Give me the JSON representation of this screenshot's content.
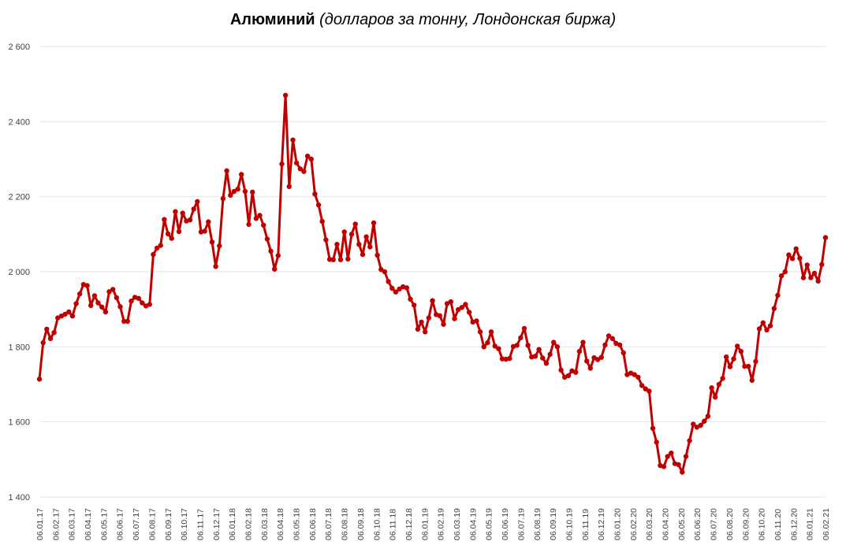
{
  "title": {
    "main": "Алюминий",
    "sub": "(долларов за тонну, Лондонская биржа)"
  },
  "colors": {
    "series": "#c00000",
    "grid": "#e6e6e6",
    "text": "#404040"
  },
  "chart_data": {
    "type": "line",
    "title": "Алюминий (долларов за тонну, Лондонская биржа)",
    "xlabel": "",
    "ylabel": "",
    "ylim": [
      1400,
      2600
    ],
    "yticks": [
      1400,
      1600,
      1800,
      2000,
      2200,
      2400,
      2600
    ],
    "ytick_labels": [
      "1 400",
      "1 600",
      "1 800",
      "2 000",
      "2 200",
      "2 400",
      "2 600"
    ],
    "xtick_labels": [
      "06.01.17",
      "06.02.17",
      "06.03.17",
      "06.04.17",
      "06.05.17",
      "06.06.17",
      "06.07.17",
      "06.08.17",
      "06.09.17",
      "06.10.17",
      "06.11.17",
      "06.12.17",
      "06.01.18",
      "06.02.18",
      "06.03.18",
      "06.04.18",
      "06.05.18",
      "06.06.18",
      "06.07.18",
      "06.08.18",
      "06.09.18",
      "06.10.18",
      "06.11.18",
      "06.12.18",
      "06.01.19",
      "06.02.19",
      "06.03.19",
      "06.04.19",
      "06.05.19",
      "06.06.19",
      "06.07.19",
      "06.08.19",
      "06.09.19",
      "06.10.19",
      "06.11.19",
      "06.12.19",
      "06.01.20",
      "06.02.20",
      "06.03.20",
      "06.04.20",
      "06.05.20",
      "06.06.20",
      "06.07.20",
      "06.08.20",
      "06.09.20",
      "06.10.20",
      "06.11.20",
      "06.12.20",
      "06.01.21",
      "06.02.21"
    ],
    "grid": true,
    "legend": "none",
    "markers": true,
    "series": [
      {
        "values": [
          1714,
          1811,
          1847,
          1822,
          1838,
          1877,
          1882,
          1887,
          1893,
          1882,
          1915,
          1941,
          1966,
          1963,
          1910,
          1936,
          1917,
          1906,
          1893,
          1947,
          1953,
          1931,
          1907,
          1868,
          1868,
          1922,
          1932,
          1929,
          1917,
          1909,
          1913,
          2046,
          2063,
          2070,
          2139,
          2101,
          2089,
          2160,
          2107,
          2156,
          2135,
          2138,
          2167,
          2187,
          2106,
          2108,
          2133,
          2079,
          2014,
          2069,
          2195,
          2269,
          2204,
          2214,
          2220,
          2259,
          2214,
          2126,
          2212,
          2142,
          2150,
          2124,
          2087,
          2055,
          2007,
          2043,
          2287,
          2470,
          2227,
          2351,
          2290,
          2274,
          2267,
          2308,
          2300,
          2207,
          2178,
          2134,
          2085,
          2033,
          2032,
          2073,
          2032,
          2106,
          2034,
          2100,
          2127,
          2073,
          2046,
          2093,
          2066,
          2130,
          2044,
          2006,
          2000,
          1974,
          1956,
          1946,
          1954,
          1960,
          1957,
          1927,
          1911,
          1847,
          1866,
          1840,
          1877,
          1923,
          1886,
          1883,
          1860,
          1915,
          1920,
          1875,
          1899,
          1905,
          1913,
          1892,
          1866,
          1869,
          1840,
          1800,
          1811,
          1840,
          1802,
          1795,
          1768,
          1767,
          1769,
          1801,
          1804,
          1824,
          1849,
          1804,
          1773,
          1775,
          1793,
          1770,
          1756,
          1780,
          1812,
          1800,
          1738,
          1719,
          1723,
          1736,
          1732,
          1788,
          1812,
          1762,
          1743,
          1771,
          1766,
          1772,
          1805,
          1829,
          1822,
          1809,
          1805,
          1784,
          1726,
          1730,
          1726,
          1719,
          1697,
          1688,
          1682,
          1583,
          1546,
          1484,
          1481,
          1508,
          1517,
          1489,
          1486,
          1466,
          1508,
          1550,
          1594,
          1586,
          1591,
          1602,
          1615,
          1691,
          1666,
          1700,
          1716,
          1773,
          1747,
          1768,
          1802,
          1788,
          1748,
          1748,
          1711,
          1761,
          1848,
          1864,
          1845,
          1856,
          1902,
          1937,
          1989,
          2000,
          2045,
          2035,
          2061,
          2036,
          1984,
          2018,
          1984,
          1996,
          1975,
          2019,
          2091
        ]
      }
    ]
  }
}
